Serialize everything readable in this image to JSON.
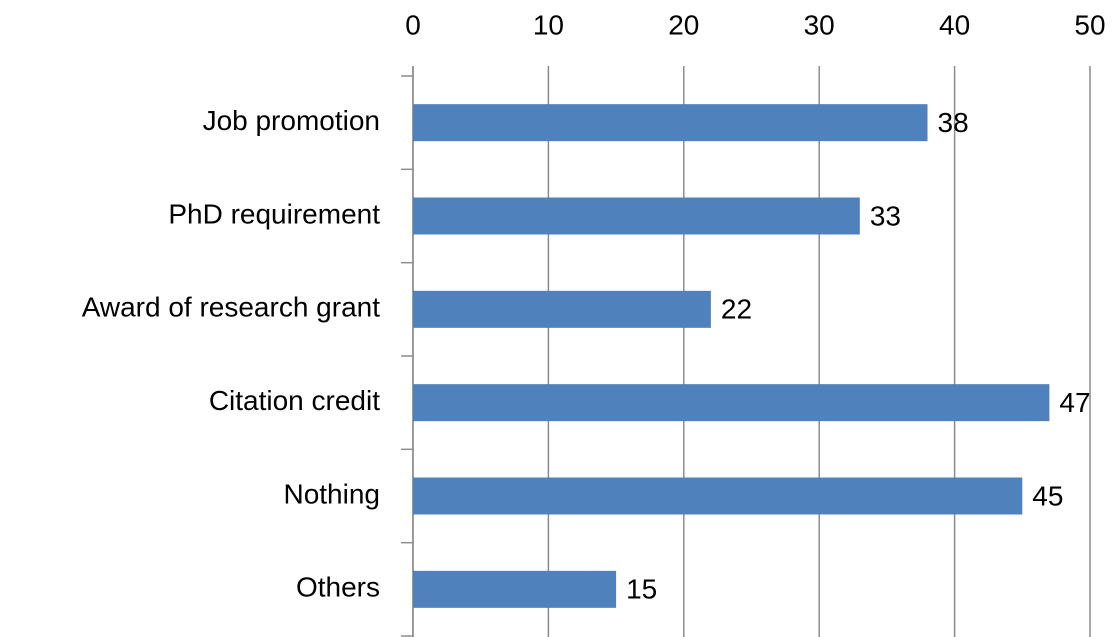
{
  "chart_data": {
    "type": "bar",
    "categories": [
      "Job promotion",
      "PhD requirement",
      "Award of research grant",
      "Citation credit",
      "Nothing",
      "Others"
    ],
    "values": [
      38,
      33,
      22,
      47,
      45,
      15
    ],
    "color": "#4f81bd",
    "xlim": [
      0,
      50
    ],
    "xticks": [
      0,
      10,
      20,
      30,
      40,
      50
    ],
    "grid": true
  }
}
